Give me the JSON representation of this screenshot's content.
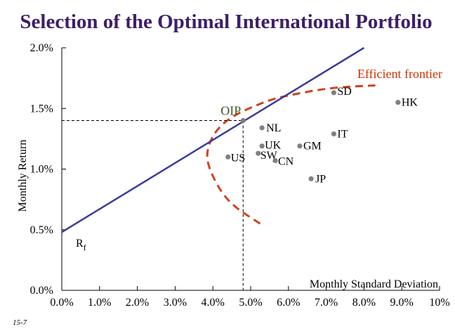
{
  "chart_data": {
    "type": "scatter",
    "title": "Selection of the Optimal International Portfolio",
    "xlabel": "Monthly Standard Deviation",
    "ylabel": "Monthly Return",
    "xlim": [
      0,
      10
    ],
    "ylim": [
      0,
      2.0
    ],
    "x_ticks": [
      "0.0%",
      "1.0%",
      "2.0%",
      "3.0%",
      "4.0%",
      "5.0%",
      "6.0%",
      "7.0%",
      "8.0%",
      "9.0%",
      "10%"
    ],
    "y_ticks": [
      "0.0%",
      "0.5%",
      "1.0%",
      "1.5%",
      "2.0%"
    ],
    "grid": false,
    "points": [
      {
        "label": "SD",
        "x": 7.2,
        "y": 1.63
      },
      {
        "label": "HK",
        "x": 8.9,
        "y": 1.55
      },
      {
        "label": "NL",
        "x": 5.3,
        "y": 1.34
      },
      {
        "label": "IT",
        "x": 7.2,
        "y": 1.29
      },
      {
        "label": "GM",
        "x": 6.3,
        "y": 1.19
      },
      {
        "label": "UK",
        "x": 5.3,
        "y": 1.19
      },
      {
        "label": "SW",
        "x": 5.2,
        "y": 1.13
      },
      {
        "label": "US",
        "x": 4.4,
        "y": 1.1
      },
      {
        "label": "CN",
        "x": 5.65,
        "y": 1.07
      },
      {
        "label": "JP",
        "x": 6.6,
        "y": 0.92
      }
    ],
    "oip": {
      "label": "OIP",
      "x": 4.8,
      "y": 1.4
    },
    "rf": {
      "label": "R",
      "subscript": "f",
      "x": 0,
      "y": 0.48
    },
    "cml": {
      "x": [
        0,
        8.0
      ],
      "y": [
        0.48,
        2.0
      ]
    },
    "frontier": {
      "label": "Efficient frontier",
      "x": [
        5.25,
        4.85,
        4.5,
        4.2,
        3.95,
        3.85,
        3.85,
        3.95,
        4.2,
        4.6,
        5.1,
        5.6
      ],
      "y": [
        0.55,
        0.63,
        0.71,
        0.82,
        0.97,
        1.07,
        1.15,
        1.25,
        1.36,
        1.45,
        1.52,
        1.58
      ],
      "upper_x": [
        5.6,
        6.2,
        6.9,
        7.6,
        8.3
      ],
      "upper_y": [
        1.58,
        1.62,
        1.66,
        1.68,
        1.69
      ],
      "color": "#cc4420"
    },
    "cml_color": "#3b3a9a",
    "point_color": "#808080",
    "title_color": "#3d1f66"
  },
  "footer": "15-7"
}
